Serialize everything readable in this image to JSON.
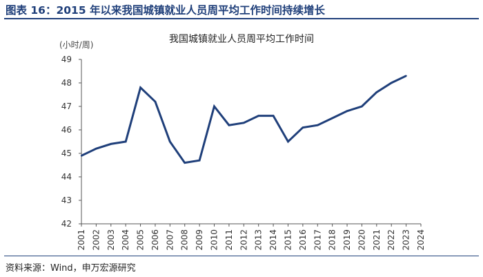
{
  "header": {
    "title": "图表 16：2015 年以来我国城镇就业人员周平均工作时间持续增长"
  },
  "footer": {
    "source": "资料来源：Wind，申万宏源研究"
  },
  "chart_data": {
    "type": "line",
    "title": "我国城镇就业人员周平均工作时间",
    "ylabel": "(小时/周)",
    "xlabel": "",
    "ylim": [
      42,
      49
    ],
    "yticks": [
      42,
      43,
      44,
      45,
      46,
      47,
      48,
      49
    ],
    "grid": false,
    "categories": [
      "2001",
      "2002",
      "2003",
      "2004",
      "2005",
      "2006",
      "2007",
      "2008",
      "2009",
      "2010",
      "2011",
      "2012",
      "2013",
      "2014",
      "2015",
      "2016",
      "2017",
      "2018",
      "2019",
      "2020",
      "2021",
      "2022",
      "2023",
      "2024"
    ],
    "series": [
      {
        "color": "#1f3f7a",
        "values": [
          44.9,
          45.2,
          45.4,
          45.5,
          47.8,
          47.2,
          45.5,
          44.6,
          44.7,
          47.0,
          46.2,
          46.3,
          46.6,
          46.6,
          45.5,
          46.1,
          46.2,
          46.5,
          46.8,
          47.0,
          47.6,
          48.0,
          48.3,
          null
        ]
      }
    ]
  }
}
